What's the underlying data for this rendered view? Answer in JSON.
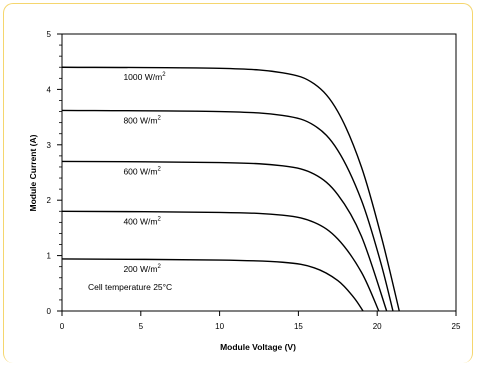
{
  "chart_data": {
    "type": "line",
    "xlabel": "Module Voltage (V)",
    "ylabel": "Module Current (A)",
    "xlim": [
      0,
      25
    ],
    "ylim": [
      0,
      5
    ],
    "x_ticks": [
      0,
      5,
      10,
      15,
      20,
      25
    ],
    "y_ticks": [
      0,
      1,
      2,
      3,
      4,
      5
    ],
    "grid": false,
    "annotation": "Cell temperature 25°C",
    "series": [
      {
        "name": "1000 W/m",
        "unit_sup": "2",
        "isc": 4.4,
        "voc": 21.4,
        "points": [
          [
            0,
            4.4
          ],
          [
            10,
            4.38
          ],
          [
            14,
            4.3
          ],
          [
            16,
            4.1
          ],
          [
            17.5,
            3.6
          ],
          [
            19,
            2.6
          ],
          [
            20.3,
            1.3
          ],
          [
            21.4,
            0
          ]
        ]
      },
      {
        "name": "800 W/m",
        "unit_sup": "2",
        "isc": 3.62,
        "voc": 21.0,
        "points": [
          [
            0,
            3.62
          ],
          [
            10,
            3.6
          ],
          [
            14,
            3.53
          ],
          [
            16,
            3.35
          ],
          [
            17.5,
            2.9
          ],
          [
            19,
            2.0
          ],
          [
            20.2,
            0.9
          ],
          [
            21.0,
            0
          ]
        ]
      },
      {
        "name": "600 W/m",
        "unit_sup": "2",
        "isc": 2.7,
        "voc": 20.6,
        "points": [
          [
            0,
            2.7
          ],
          [
            10,
            2.68
          ],
          [
            14,
            2.62
          ],
          [
            16,
            2.47
          ],
          [
            17.5,
            2.1
          ],
          [
            19,
            1.35
          ],
          [
            20.6,
            0
          ]
        ]
      },
      {
        "name": "400 W/m",
        "unit_sup": "2",
        "isc": 1.8,
        "voc": 20.1,
        "points": [
          [
            0,
            1.8
          ],
          [
            10,
            1.78
          ],
          [
            14,
            1.73
          ],
          [
            16,
            1.6
          ],
          [
            17.5,
            1.3
          ],
          [
            19,
            0.7
          ],
          [
            20.1,
            0
          ]
        ]
      },
      {
        "name": "200 W/m",
        "unit_sup": "2",
        "isc": 0.94,
        "voc": 19.1,
        "points": [
          [
            0,
            0.94
          ],
          [
            10,
            0.92
          ],
          [
            14,
            0.88
          ],
          [
            16,
            0.78
          ],
          [
            17.5,
            0.55
          ],
          [
            18.5,
            0.25
          ],
          [
            19.1,
            0
          ]
        ]
      }
    ]
  }
}
